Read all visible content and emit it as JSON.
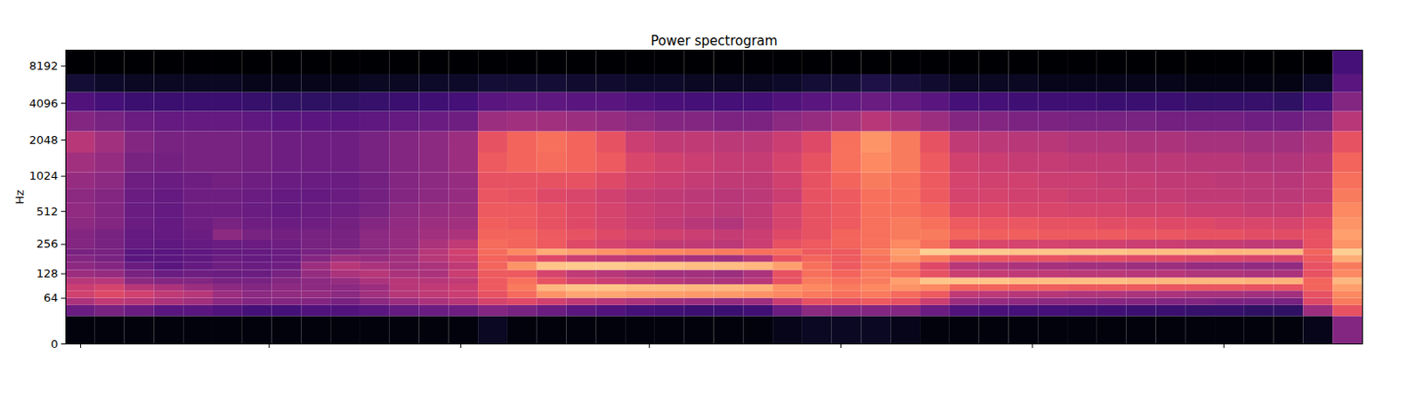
{
  "chart_data": {
    "type": "heatmap",
    "title": "Power spectrogram",
    "ylabel": "Hz",
    "color": "magma",
    "log": "y",
    "tick_labels": "y",
    "xlim": [
      0,
      44
    ],
    "xticks": [
      0.5,
      6.9,
      13.4,
      19.8,
      26.3,
      32.8,
      39.3
    ],
    "ylim": [
      0,
      11025
    ],
    "yticks": [
      0,
      64,
      128,
      256,
      512,
      1024,
      2048,
      4096,
      8192
    ],
    "zlim": [
      -80,
      0
    ],
    "x": [
      0,
      1,
      2,
      3,
      4,
      5,
      6,
      7,
      8,
      9,
      10,
      11,
      12,
      13,
      14,
      15,
      16,
      17,
      18,
      19,
      20,
      21,
      22,
      23,
      24,
      25,
      26,
      27,
      28,
      29,
      30,
      31,
      32,
      33,
      34,
      35,
      36,
      37,
      38,
      39,
      40,
      41,
      42,
      43,
      44
    ],
    "y": [
      0,
      32,
      50,
      64,
      80,
      96,
      115,
      140,
      170,
      200,
      230,
      280,
      350,
      450,
      600,
      800,
      1100,
      1600,
      2400,
      3500,
      5000,
      7000,
      11025
    ],
    "z": [
      [
        -78,
        -55,
        -42,
        -35,
        -36,
        -40,
        -45,
        -48,
        -50,
        -52,
        -50,
        -50,
        -48,
        -47,
        -48,
        -46,
        -44,
        -40,
        -50,
        -60,
        -72,
        -80
      ],
      [
        -78,
        -52,
        -38,
        -32,
        -34,
        -40,
        -46,
        -50,
        -52,
        -52,
        -52,
        -52,
        -50,
        -50,
        -50,
        -48,
        -46,
        -44,
        -52,
        -62,
        -74,
        -80
      ],
      [
        -78,
        -55,
        -40,
        -35,
        -40,
        -48,
        -52,
        -55,
        -58,
        -58,
        -56,
        -56,
        -55,
        -55,
        -55,
        -54,
        -52,
        -50,
        -55,
        -64,
        -75,
        -80
      ],
      [
        -78,
        -58,
        -42,
        -38,
        -42,
        -50,
        -55,
        -58,
        -58,
        -58,
        -57,
        -56,
        -56,
        -56,
        -56,
        -55,
        -53,
        -52,
        -56,
        -64,
        -75,
        -80
      ],
      [
        -78,
        -58,
        -44,
        -40,
        -45,
        -50,
        -54,
        -56,
        -57,
        -57,
        -56,
        -55,
        -54,
        -54,
        -54,
        -54,
        -52,
        -52,
        -56,
        -64,
        -75,
        -80
      ],
      [
        -78,
        -60,
        -48,
        -45,
        -48,
        -52,
        -55,
        -54,
        -55,
        -56,
        -55,
        -48,
        -52,
        -54,
        -54,
        -53,
        -52,
        -52,
        -56,
        -64,
        -75,
        -80
      ],
      [
        -78,
        -62,
        -50,
        -48,
        -50,
        -52,
        -55,
        -55,
        -56,
        -56,
        -55,
        -52,
        -54,
        -55,
        -55,
        -54,
        -53,
        -53,
        -57,
        -65,
        -76,
        -80
      ],
      [
        -78,
        -62,
        -50,
        -47,
        -48,
        -50,
        -52,
        -54,
        -55,
        -55,
        -54,
        -53,
        -55,
        -56,
        -56,
        -55,
        -54,
        -54,
        -58,
        -66,
        -76,
        -80
      ],
      [
        -78,
        -60,
        -50,
        -46,
        -48,
        -48,
        -46,
        -45,
        -50,
        -52,
        -52,
        -52,
        -54,
        -55,
        -56,
        -55,
        -54,
        -54,
        -58,
        -66,
        -76,
        -80
      ],
      [
        -78,
        -60,
        -52,
        -48,
        -48,
        -46,
        -42,
        -40,
        -45,
        -50,
        -52,
        -52,
        -53,
        -54,
        -55,
        -55,
        -54,
        -54,
        -58,
        -66,
        -76,
        -80
      ],
      [
        -78,
        -58,
        -48,
        -44,
        -45,
        -42,
        -40,
        -42,
        -46,
        -48,
        -48,
        -48,
        -50,
        -52,
        -53,
        -53,
        -52,
        -52,
        -57,
        -65,
        -75,
        -80
      ],
      [
        -78,
        -56,
        -45,
        -40,
        -40,
        -40,
        -42,
        -44,
        -44,
        -45,
        -46,
        -46,
        -47,
        -48,
        -50,
        -50,
        -50,
        -50,
        -56,
        -64,
        -75,
        -80
      ],
      [
        -78,
        -55,
        -42,
        -38,
        -38,
        -40,
        -42,
        -42,
        -40,
        -40,
        -42,
        -44,
        -45,
        -46,
        -48,
        -48,
        -48,
        -48,
        -55,
        -63,
        -74,
        -80
      ],
      [
        -78,
        -54,
        -40,
        -36,
        -36,
        -38,
        -36,
        -38,
        -36,
        -35,
        -38,
        -42,
        -44,
        -45,
        -46,
        -46,
        -45,
        -45,
        -54,
        -62,
        -74,
        -80
      ],
      [
        -75,
        -50,
        -34,
        -30,
        -28,
        -28,
        -28,
        -26,
        -26,
        -25,
        -25,
        -26,
        -27,
        -28,
        -29,
        -30,
        -28,
        -30,
        -45,
        -58,
        -72,
        -80
      ],
      [
        -78,
        -52,
        -32,
        -25,
        -22,
        -24,
        -28,
        -18,
        -28,
        -20,
        -26,
        -26,
        -28,
        -28,
        -30,
        -30,
        -26,
        -26,
        -44,
        -57,
        -72,
        -80
      ],
      [
        -78,
        -55,
        -35,
        -18,
        -12,
        -30,
        -34,
        -10,
        -32,
        -14,
        -28,
        -28,
        -30,
        -30,
        -32,
        -30,
        -25,
        -24,
        -44,
        -57,
        -72,
        -80
      ],
      [
        -78,
        -58,
        -38,
        -15,
        -10,
        -34,
        -38,
        -9,
        -36,
        -16,
        -32,
        -30,
        -32,
        -32,
        -33,
        -30,
        -26,
        -26,
        -45,
        -58,
        -73,
        -80
      ],
      [
        -78,
        -60,
        -40,
        -15,
        -10,
        -36,
        -40,
        -9,
        -38,
        -18,
        -34,
        -32,
        -34,
        -34,
        -35,
        -32,
        -28,
        -30,
        -46,
        -58,
        -73,
        -80
      ],
      [
        -78,
        -62,
        -42,
        -16,
        -11,
        -38,
        -42,
        -10,
        -40,
        -20,
        -36,
        -34,
        -36,
        -36,
        -37,
        -35,
        -33,
        -36,
        -48,
        -60,
        -74,
        -80
      ],
      [
        -78,
        -63,
        -44,
        -16,
        -11,
        -40,
        -44,
        -10,
        -42,
        -20,
        -38,
        -35,
        -38,
        -37,
        -38,
        -36,
        -35,
        -38,
        -50,
        -61,
        -74,
        -80
      ],
      [
        -78,
        -64,
        -45,
        -17,
        -12,
        -41,
        -44,
        -11,
        -43,
        -21,
        -38,
        -36,
        -40,
        -38,
        -39,
        -37,
        -36,
        -38,
        -50,
        -62,
        -75,
        -80
      ],
      [
        -78,
        -64,
        -46,
        -17,
        -12,
        -42,
        -45,
        -11,
        -44,
        -22,
        -39,
        -37,
        -41,
        -39,
        -40,
        -38,
        -37,
        -39,
        -51,
        -62,
        -75,
        -80
      ],
      [
        -78,
        -63,
        -45,
        -18,
        -13,
        -40,
        -42,
        -12,
        -40,
        -24,
        -36,
        -36,
        -38,
        -38,
        -39,
        -38,
        -37,
        -39,
        -51,
        -62,
        -75,
        -80
      ],
      [
        -76,
        -55,
        -36,
        -20,
        -18,
        -30,
        -30,
        -16,
        -30,
        -24,
        -30,
        -32,
        -34,
        -34,
        -36,
        -35,
        -34,
        -36,
        -48,
        -60,
        -74,
        -80
      ],
      [
        -75,
        -48,
        -30,
        -22,
        -20,
        -22,
        -24,
        -24,
        -26,
        -28,
        -28,
        -30,
        -30,
        -30,
        -30,
        -30,
        -30,
        -32,
        -46,
        -58,
        -72,
        -80
      ],
      [
        -75,
        -50,
        -30,
        -24,
        -22,
        -24,
        -26,
        -28,
        -28,
        -28,
        -26,
        -26,
        -28,
        -28,
        -28,
        -26,
        -24,
        -24,
        -44,
        -57,
        -72,
        -80
      ],
      [
        -75,
        -50,
        -28,
        -22,
        -20,
        -22,
        -22,
        -24,
        -24,
        -22,
        -24,
        -24,
        -24,
        -24,
        -24,
        -22,
        -20,
        -18,
        -40,
        -55,
        -70,
        -80
      ],
      [
        -76,
        -50,
        -30,
        -25,
        -18,
        -16,
        -24,
        -24,
        -18,
        -16,
        -20,
        -22,
        -22,
        -24,
        -24,
        -24,
        -22,
        -22,
        -42,
        -56,
        -71,
        -80
      ],
      [
        -78,
        -55,
        -36,
        -28,
        -20,
        -10,
        -30,
        -32,
        -22,
        -8,
        -24,
        -22,
        -24,
        -26,
        -28,
        -28,
        -28,
        -30,
        -45,
        -58,
        -73,
        -80
      ],
      [
        -78,
        -60,
        -45,
        -38,
        -26,
        -10,
        -36,
        -40,
        -28,
        -9,
        -32,
        -26,
        -28,
        -32,
        -34,
        -34,
        -35,
        -38,
        -50,
        -62,
        -75,
        -80
      ],
      [
        -78,
        -61,
        -46,
        -39,
        -26,
        -10,
        -37,
        -41,
        -29,
        -9,
        -33,
        -27,
        -29,
        -32,
        -34,
        -35,
        -36,
        -39,
        -50,
        -62,
        -75,
        -80
      ],
      [
        -78,
        -62,
        -47,
        -40,
        -27,
        -11,
        -38,
        -42,
        -30,
        -10,
        -34,
        -27,
        -29,
        -33,
        -35,
        -35,
        -37,
        -40,
        -51,
        -63,
        -75,
        -80
      ],
      [
        -78,
        -62,
        -48,
        -40,
        -27,
        -11,
        -38,
        -43,
        -30,
        -10,
        -34,
        -28,
        -30,
        -33,
        -35,
        -36,
        -37,
        -40,
        -51,
        -63,
        -76,
        -80
      ],
      [
        -78,
        -63,
        -48,
        -41,
        -28,
        -11,
        -39,
        -44,
        -31,
        -10,
        -35,
        -28,
        -30,
        -34,
        -36,
        -36,
        -38,
        -41,
        -52,
        -63,
        -76,
        -80
      ],
      [
        -78,
        -63,
        -49,
        -41,
        -28,
        -11,
        -39,
        -44,
        -31,
        -10,
        -35,
        -28,
        -31,
        -34,
        -36,
        -37,
        -38,
        -41,
        -52,
        -64,
        -76,
        -80
      ],
      [
        -78,
        -64,
        -49,
        -42,
        -28,
        -12,
        -40,
        -45,
        -32,
        -11,
        -36,
        -29,
        -31,
        -35,
        -37,
        -37,
        -39,
        -42,
        -52,
        -64,
        -76,
        -80
      ],
      [
        -78,
        -64,
        -50,
        -42,
        -29,
        -12,
        -40,
        -45,
        -32,
        -11,
        -36,
        -29,
        -32,
        -35,
        -37,
        -38,
        -39,
        -42,
        -53,
        -64,
        -76,
        -80
      ],
      [
        -78,
        -65,
        -50,
        -43,
        -29,
        -12,
        -41,
        -46,
        -33,
        -11,
        -37,
        -30,
        -32,
        -36,
        -38,
        -38,
        -40,
        -43,
        -53,
        -65,
        -77,
        -80
      ],
      [
        -78,
        -65,
        -51,
        -43,
        -29,
        -12,
        -41,
        -46,
        -33,
        -12,
        -37,
        -30,
        -33,
        -36,
        -38,
        -39,
        -40,
        -43,
        -53,
        -65,
        -77,
        -80
      ],
      [
        -78,
        -66,
        -51,
        -44,
        -30,
        -13,
        -42,
        -47,
        -34,
        -12,
        -38,
        -31,
        -33,
        -37,
        -39,
        -39,
        -41,
        -44,
        -54,
        -65,
        -77,
        -80
      ],
      [
        -78,
        -66,
        -52,
        -44,
        -30,
        -13,
        -42,
        -47,
        -34,
        -12,
        -38,
        -31,
        -34,
        -37,
        -39,
        -40,
        -41,
        -44,
        -54,
        -66,
        -77,
        -80
      ],
      [
        -76,
        -45,
        -32,
        -30,
        -26,
        -26,
        -30,
        -30,
        -28,
        -26,
        -30,
        -30,
        -32,
        -35,
        -38,
        -38,
        -40,
        -42,
        -52,
        -62,
        -74,
        -80
      ],
      [
        -50,
        -30,
        -22,
        -20,
        -16,
        -12,
        -20,
        -22,
        -14,
        -8,
        -18,
        -16,
        -18,
        -20,
        -22,
        -24,
        -26,
        -30,
        -40,
        -50,
        -58,
        -62
      ]
    ]
  }
}
